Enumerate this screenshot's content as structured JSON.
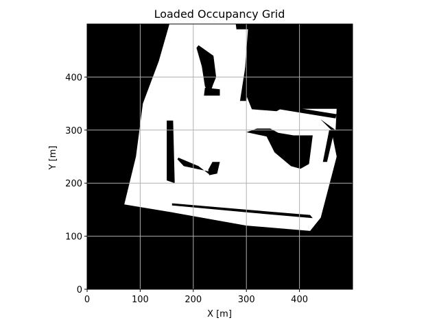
{
  "chart_data": {
    "type": "heatmap",
    "title": "Loaded Occupancy Grid",
    "xlabel": "X [m]",
    "ylabel": "Y [m]",
    "xlim": [
      0,
      500
    ],
    "ylim": [
      0,
      500
    ],
    "x_ticks": [
      0,
      100,
      200,
      300,
      400
    ],
    "y_ticks": [
      0,
      100,
      200,
      300,
      400
    ],
    "x_tick_labels": [
      "0",
      "100",
      "200",
      "300",
      "400"
    ],
    "y_tick_labels": [
      "0",
      "100",
      "200",
      "300",
      "400"
    ],
    "grid": true,
    "colormap": "gray",
    "colors": {
      "occupied": "#000000",
      "free": "#ffffff",
      "grid": "#b0b0b0"
    },
    "free_regions": [
      {
        "name": "main-free-area",
        "polygon": [
          [
            175,
            500
          ],
          [
            155,
            500
          ],
          [
            135,
            430
          ],
          [
            105,
            350
          ],
          [
            92,
            250
          ],
          [
            70,
            160
          ],
          [
            160,
            145
          ],
          [
            300,
            120
          ],
          [
            420,
            110
          ],
          [
            440,
            135
          ],
          [
            470,
            250
          ],
          [
            460,
            300
          ],
          [
            430,
            330
          ],
          [
            300,
            340
          ],
          [
            280,
            500
          ]
        ]
      },
      {
        "name": "upper-right-free-area",
        "polygon": [
          [
            262,
            490
          ],
          [
            303,
            490
          ],
          [
            297,
            410
          ],
          [
            300,
            365
          ],
          [
            320,
            315
          ],
          [
            365,
            340
          ],
          [
            470,
            340
          ],
          [
            468,
            300
          ],
          [
            440,
            320
          ],
          [
            330,
            290
          ],
          [
            300,
            275
          ],
          [
            270,
            275
          ]
        ]
      }
    ],
    "occupied_regions": [
      {
        "name": "upper-blob",
        "polygon": [
          [
            210,
            460
          ],
          [
            238,
            440
          ],
          [
            243,
            400
          ],
          [
            237,
            385
          ],
          [
            232,
            370
          ],
          [
            222,
            382
          ],
          [
            216,
            420
          ],
          [
            206,
            455
          ]
        ]
      },
      {
        "name": "upper-blob-base",
        "polygon": [
          [
            222,
            380
          ],
          [
            250,
            377
          ],
          [
            250,
            365
          ],
          [
            220,
            365
          ]
        ]
      },
      {
        "name": "right-blob",
        "polygon": [
          [
            300,
            296
          ],
          [
            338,
            288
          ],
          [
            353,
            258
          ],
          [
            384,
            232
          ],
          [
            402,
            227
          ],
          [
            418,
            236
          ],
          [
            425,
            290
          ],
          [
            389,
            290
          ],
          [
            360,
            295
          ],
          [
            345,
            303
          ],
          [
            320,
            303
          ]
        ]
      },
      {
        "name": "left-wall-mid",
        "polygon": [
          [
            150,
            318
          ],
          [
            162,
            318
          ],
          [
            165,
            200
          ],
          [
            150,
            205
          ]
        ]
      },
      {
        "name": "middle-bar",
        "polygon": [
          [
            172,
            248
          ],
          [
            210,
            232
          ],
          [
            232,
            215
          ],
          [
            230,
            222
          ],
          [
            182,
            232
          ],
          [
            170,
            245
          ]
        ]
      },
      {
        "name": "middle-small",
        "polygon": [
          [
            236,
            240
          ],
          [
            250,
            240
          ],
          [
            245,
            218
          ],
          [
            230,
            215
          ],
          [
            228,
            225
          ]
        ]
      },
      {
        "name": "bottom-wall",
        "polygon": [
          [
            160,
            162
          ],
          [
            300,
            150
          ],
          [
            420,
            140
          ],
          [
            425,
            134
          ],
          [
            300,
            145
          ],
          [
            160,
            158
          ]
        ]
      },
      {
        "name": "right-wall-strip",
        "polygon": [
          [
            298,
            420
          ],
          [
            310,
            420
          ],
          [
            300,
            355
          ],
          [
            288,
            355
          ]
        ]
      },
      {
        "name": "right-upper-strip",
        "polygon": [
          [
            345,
            350
          ],
          [
            470,
            330
          ],
          [
            468,
            322
          ],
          [
            345,
            342
          ]
        ]
      },
      {
        "name": "right-side-strip",
        "polygon": [
          [
            456,
            300
          ],
          [
            466,
            300
          ],
          [
            452,
            240
          ],
          [
            444,
            240
          ]
        ]
      }
    ]
  }
}
